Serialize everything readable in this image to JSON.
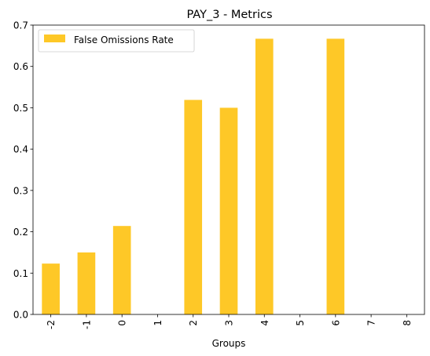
{
  "chart_data": {
    "type": "bar",
    "title": "PAY_3 - Metrics",
    "xlabel": "Groups",
    "ylabel": "",
    "categories": [
      "-2",
      "-1",
      "0",
      "1",
      "2",
      "3",
      "4",
      "5",
      "6",
      "7",
      "8"
    ],
    "series": [
      {
        "name": "False Omissions Rate",
        "color": "#fec827",
        "values": [
          0.123,
          0.15,
          0.214,
          0.0,
          0.519,
          0.5,
          0.667,
          0.0,
          0.667,
          0.0,
          0.0
        ]
      }
    ],
    "ylim": [
      0,
      0.7
    ],
    "yticks": [
      "0.0",
      "0.1",
      "0.2",
      "0.3",
      "0.4",
      "0.5",
      "0.6",
      "0.7"
    ],
    "grid": false,
    "legend_position": "top-left"
  }
}
